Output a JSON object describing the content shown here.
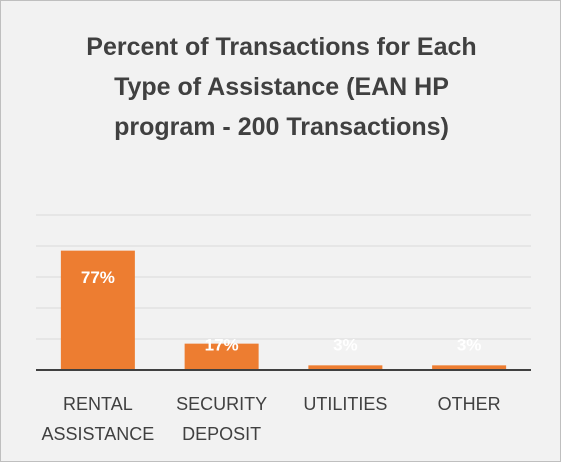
{
  "chart_data": {
    "type": "bar",
    "title": "Percent of Transactions for Each Type of Assistance (EAN HP program - 200 Transactions)",
    "categories": [
      "RENTAL ASSISTANCE",
      "SECURITY DEPOSIT",
      "UTILITIES",
      "OTHER"
    ],
    "values": [
      77,
      17,
      3,
      3
    ],
    "value_labels": [
      "77%",
      "17%",
      "3%",
      "3%"
    ],
    "color": "#ed7d31",
    "ylim": [
      0,
      100
    ],
    "yticks": [
      0,
      20,
      40,
      60,
      80,
      100
    ],
    "grid": true
  }
}
